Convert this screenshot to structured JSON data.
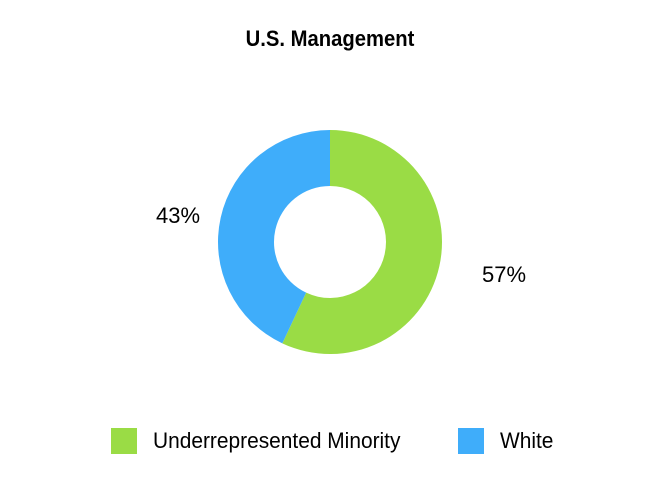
{
  "chart_data": {
    "type": "pie",
    "variant": "donut",
    "title": "U.S. Management",
    "series": [
      {
        "name": "Underrepresented Minority",
        "value": 57,
        "label": "57%",
        "color": "#9ADC45"
      },
      {
        "name": "White",
        "value": 43,
        "label": "43%",
        "color": "#3FADFA"
      }
    ],
    "legend_position": "bottom",
    "start_angle": "12 o'clock",
    "direction": "clockwise"
  }
}
